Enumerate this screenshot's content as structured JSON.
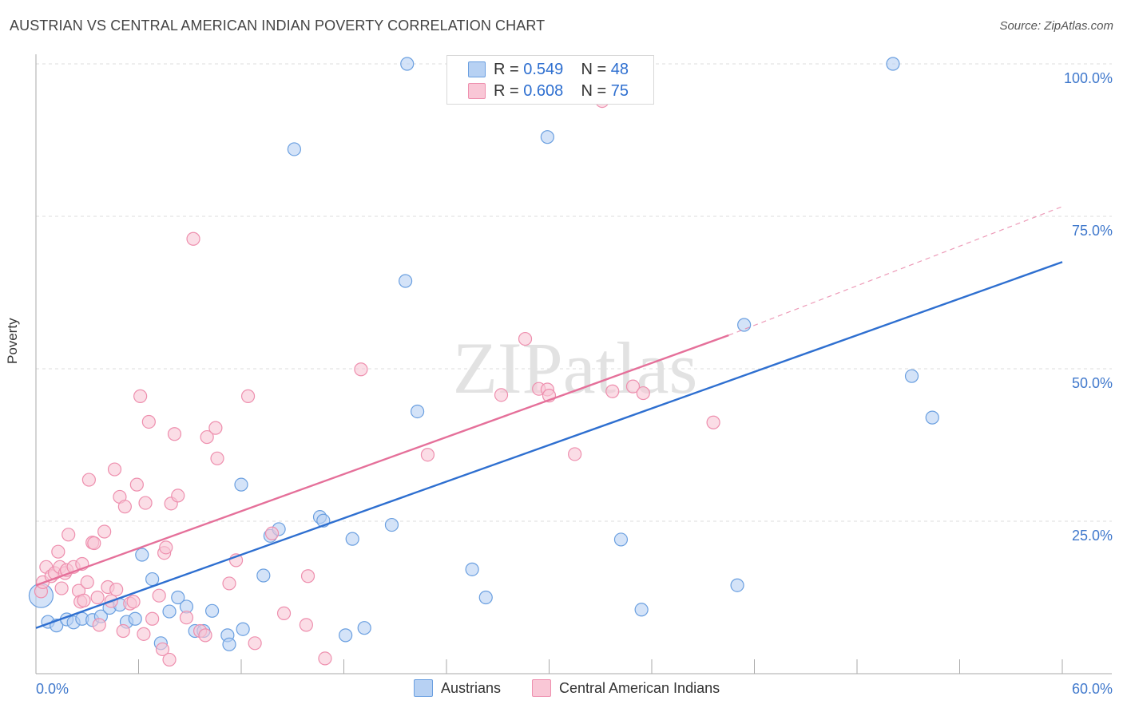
{
  "title": "AUSTRIAN VS CENTRAL AMERICAN INDIAN POVERTY CORRELATION CHART",
  "source": "Source: ZipAtlas.com",
  "watermark": "ZIPatlas",
  "legend": {
    "rows": [
      {
        "r_label": "R = ",
        "r_value": "0.549",
        "n_label": "N = ",
        "n_value": "48"
      },
      {
        "r_label": "R = ",
        "r_value": "0.608",
        "n_label": "N = ",
        "n_value": "75"
      }
    ]
  },
  "colors": {
    "blue_fill": "#b7d1f3",
    "blue_stroke": "#6a9fe0",
    "blue_line": "#2e6fd0",
    "pink_fill": "#f9c7d6",
    "pink_stroke": "#ee8fae",
    "pink_line": "#e5709a",
    "tick_label": "#3f78cc",
    "grid": "#dddddd"
  },
  "chart_data": {
    "type": "scatter",
    "title": "AUSTRIAN VS CENTRAL AMERICAN INDIAN POVERTY CORRELATION CHART",
    "xlabel": "",
    "ylabel": "Poverty",
    "xlim": [
      0,
      60
    ],
    "ylim": [
      0,
      100
    ],
    "x_tick_labels": [
      "0.0%",
      "60.0%"
    ],
    "y_ticks": [
      25,
      50,
      75,
      100
    ],
    "y_tick_labels": [
      "25.0%",
      "50.0%",
      "75.0%",
      "100.0%"
    ],
    "grid": true,
    "legend_position": "top-center",
    "series": [
      {
        "name": "Austrians",
        "color": "#6a9fe0",
        "r": 0.549,
        "n": 48,
        "trend": {
          "x": [
            0,
            60
          ],
          "y": [
            7.5,
            67.5
          ],
          "style": "solid"
        },
        "points": [
          [
            0.3,
            12.8
          ],
          [
            0.7,
            8.5
          ],
          [
            1.2,
            7.9
          ],
          [
            1.8,
            8.9
          ],
          [
            2.2,
            8.4
          ],
          [
            2.7,
            9.0
          ],
          [
            3.3,
            8.8
          ],
          [
            3.8,
            9.4
          ],
          [
            4.3,
            10.8
          ],
          [
            4.9,
            11.3
          ],
          [
            5.3,
            8.5
          ],
          [
            5.8,
            9.0
          ],
          [
            6.2,
            19.5
          ],
          [
            6.8,
            15.5
          ],
          [
            7.3,
            5.0
          ],
          [
            7.8,
            10.2
          ],
          [
            8.3,
            12.5
          ],
          [
            8.8,
            11.0
          ],
          [
            9.3,
            7.0
          ],
          [
            9.8,
            7.0
          ],
          [
            10.3,
            10.3
          ],
          [
            11.2,
            6.3
          ],
          [
            11.3,
            4.8
          ],
          [
            12.1,
            7.3
          ],
          [
            12.0,
            31.0
          ],
          [
            13.3,
            16.1
          ],
          [
            13.7,
            22.6
          ],
          [
            14.2,
            23.7
          ],
          [
            15.1,
            86.0
          ],
          [
            16.6,
            25.7
          ],
          [
            16.8,
            25.1
          ],
          [
            18.5,
            22.1
          ],
          [
            18.1,
            6.3
          ],
          [
            19.2,
            7.5
          ],
          [
            20.8,
            24.4
          ],
          [
            21.6,
            64.4
          ],
          [
            21.7,
            100.0
          ],
          [
            22.3,
            43.0
          ],
          [
            25.5,
            17.1
          ],
          [
            26.3,
            12.5
          ],
          [
            29.9,
            88.0
          ],
          [
            34.2,
            22.0
          ],
          [
            35.4,
            10.5
          ],
          [
            41.4,
            57.2
          ],
          [
            41.0,
            14.5
          ],
          [
            50.1,
            100.0
          ],
          [
            51.2,
            48.8
          ],
          [
            52.4,
            42.0
          ]
        ]
      },
      {
        "name": "Central American Indians",
        "color": "#ee8fae",
        "r": 0.608,
        "n": 75,
        "trend": {
          "x": [
            0,
            40.5
          ],
          "y": [
            14.5,
            55.5
          ],
          "style": "solid",
          "dashed_extension_to": [
            60,
            76.6
          ]
        },
        "points": [
          [
            0.3,
            13.5
          ],
          [
            0.4,
            15.0
          ],
          [
            0.6,
            17.5
          ],
          [
            0.9,
            16.0
          ],
          [
            1.1,
            16.5
          ],
          [
            1.3,
            20.0
          ],
          [
            1.4,
            17.5
          ],
          [
            1.5,
            14.0
          ],
          [
            1.7,
            16.5
          ],
          [
            1.8,
            17.0
          ],
          [
            1.9,
            22.8
          ],
          [
            2.2,
            17.5
          ],
          [
            2.5,
            13.6
          ],
          [
            2.6,
            11.8
          ],
          [
            2.7,
            18.0
          ],
          [
            2.8,
            12.0
          ],
          [
            3.0,
            15.0
          ],
          [
            3.1,
            31.8
          ],
          [
            3.3,
            21.5
          ],
          [
            3.4,
            21.4
          ],
          [
            3.6,
            12.5
          ],
          [
            3.7,
            8.0
          ],
          [
            4.0,
            23.3
          ],
          [
            4.2,
            14.2
          ],
          [
            4.4,
            11.9
          ],
          [
            4.6,
            33.5
          ],
          [
            4.7,
            13.8
          ],
          [
            4.9,
            29.0
          ],
          [
            5.1,
            7.0
          ],
          [
            5.2,
            27.4
          ],
          [
            5.5,
            11.5
          ],
          [
            5.7,
            11.8
          ],
          [
            5.9,
            31.0
          ],
          [
            6.1,
            45.5
          ],
          [
            6.3,
            6.5
          ],
          [
            6.4,
            28.0
          ],
          [
            6.6,
            41.3
          ],
          [
            6.8,
            9.0
          ],
          [
            7.2,
            12.8
          ],
          [
            7.4,
            4.0
          ],
          [
            7.5,
            19.8
          ],
          [
            7.6,
            20.7
          ],
          [
            7.8,
            2.3
          ],
          [
            7.9,
            27.9
          ],
          [
            8.1,
            39.3
          ],
          [
            8.3,
            29.2
          ],
          [
            8.8,
            9.2
          ],
          [
            9.2,
            71.3
          ],
          [
            9.6,
            7.0
          ],
          [
            9.9,
            6.3
          ],
          [
            10.0,
            38.8
          ],
          [
            10.5,
            40.3
          ],
          [
            10.6,
            35.3
          ],
          [
            11.3,
            14.8
          ],
          [
            11.7,
            18.6
          ],
          [
            12.4,
            45.5
          ],
          [
            12.8,
            5.0
          ],
          [
            13.8,
            23.0
          ],
          [
            14.5,
            9.9
          ],
          [
            15.8,
            8.0
          ],
          [
            15.9,
            16.0
          ],
          [
            16.9,
            2.5
          ],
          [
            19.0,
            49.9
          ],
          [
            22.9,
            35.9
          ],
          [
            27.2,
            45.7
          ],
          [
            28.6,
            54.9
          ],
          [
            29.4,
            46.7
          ],
          [
            29.9,
            46.6
          ],
          [
            30.0,
            45.6
          ],
          [
            31.5,
            36.0
          ],
          [
            33.1,
            93.9
          ],
          [
            33.7,
            46.3
          ],
          [
            34.9,
            47.1
          ],
          [
            39.6,
            41.2
          ],
          [
            35.5,
            46.0
          ]
        ]
      }
    ]
  },
  "bottom_legend": [
    "Austrians",
    "Central American Indians"
  ]
}
